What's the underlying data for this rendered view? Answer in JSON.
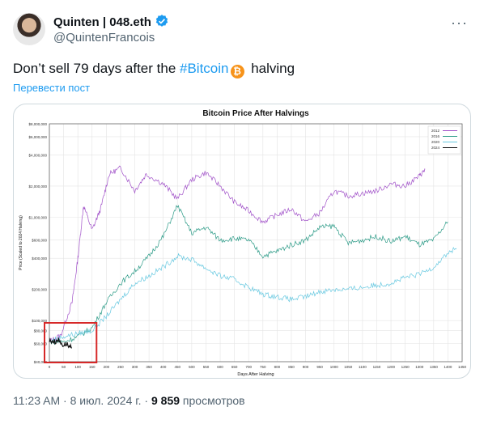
{
  "author": {
    "name": "Quinten | 048.eth",
    "handle": "@QuintenFrancois"
  },
  "tweet": {
    "text_before": "Don’t sell 79 days after the ",
    "hashtag": "#Bitcoin",
    "text_after": " halving"
  },
  "translate_label": "Перевести пост",
  "meta": {
    "time": "11:23 AM",
    "sep1": " · ",
    "date": "8 июл. 2024 г.",
    "sep2": " · ",
    "views": "9 859",
    "views_label": " просмотров"
  },
  "chart_data": {
    "type": "line",
    "title": "Bitcoin Price After Halvings",
    "xlabel": "Days After Halving",
    "ylabel": "Price (Scaled to 2024 Halving)",
    "x_ticks": [
      0,
      50,
      100,
      150,
      200,
      250,
      300,
      350,
      400,
      450,
      500,
      550,
      600,
      650,
      700,
      750,
      800,
      850,
      900,
      950,
      1000,
      1050,
      1100,
      1150,
      1200,
      1250,
      1300,
      1350,
      1400,
      1450
    ],
    "y_ticks": [
      "$8,000,000",
      "$6,000,000",
      "$4,000,000",
      "$2,000,000",
      "$1,000,000",
      "$600,000",
      "$400,000",
      "$200,000",
      "$100,000",
      "$80,000",
      "$60,000",
      "$40,000"
    ],
    "y_log": true,
    "xlim": [
      0,
      1450
    ],
    "legend": [
      "2012",
      "2016",
      "2020",
      "2024"
    ],
    "legend_position": "top-right",
    "series": [
      {
        "name": "2012",
        "color": "#a050c8",
        "x": [
          0,
          40,
          80,
          100,
          120,
          150,
          180,
          210,
          250,
          300,
          340,
          400,
          450,
          500,
          550,
          600,
          650,
          700,
          750,
          800,
          850,
          900,
          950,
          1000,
          1050,
          1100,
          1150,
          1200,
          1250,
          1300,
          1320
        ],
        "y": [
          63000,
          72000,
          150000,
          400000,
          1300000,
          750000,
          1200000,
          2600000,
          3000000,
          1800000,
          2600000,
          2100000,
          1500000,
          2300000,
          2700000,
          2000000,
          1400000,
          1150000,
          900000,
          1050000,
          1200000,
          900000,
          1100000,
          1800000,
          1600000,
          1700000,
          1800000,
          2100000,
          2000000,
          2500000,
          2900000
        ]
      },
      {
        "name": "2016",
        "color": "#2a9a86",
        "x": [
          0,
          50,
          100,
          150,
          200,
          250,
          300,
          350,
          400,
          450,
          500,
          550,
          600,
          650,
          700,
          750,
          800,
          850,
          900,
          950,
          1000,
          1050,
          1100,
          1150,
          1200,
          1250,
          1300,
          1350,
          1400
        ],
        "y": [
          63000,
          62000,
          70000,
          85000,
          150000,
          230000,
          300000,
          420000,
          650000,
          1300000,
          700000,
          800000,
          600000,
          620000,
          600000,
          420000,
          470000,
          540000,
          600000,
          800000,
          820000,
          560000,
          600000,
          650000,
          580000,
          650000,
          540000,
          600000,
          900000
        ]
      },
      {
        "name": "2020",
        "color": "#66c8e0",
        "x": [
          0,
          50,
          100,
          150,
          200,
          250,
          300,
          350,
          400,
          450,
          500,
          550,
          600,
          650,
          700,
          750,
          800,
          850,
          900,
          950,
          1000,
          1050,
          1100,
          1150,
          1200,
          1250,
          1300,
          1350,
          1400,
          1430
        ],
        "y": [
          63000,
          70000,
          75000,
          80000,
          110000,
          160000,
          230000,
          270000,
          330000,
          420000,
          390000,
          320000,
          270000,
          250000,
          210000,
          180000,
          170000,
          160000,
          170000,
          190000,
          200000,
          200000,
          210000,
          220000,
          230000,
          260000,
          280000,
          330000,
          450000,
          500000
        ]
      },
      {
        "name": "2024",
        "color": "#111111",
        "x": [
          0,
          10,
          20,
          30,
          40,
          50,
          60,
          70,
          79
        ],
        "y": [
          63000,
          64000,
          62000,
          66000,
          61000,
          58000,
          60000,
          56000,
          54000
        ]
      }
    ],
    "annotation": "red box around first ~150 days"
  }
}
